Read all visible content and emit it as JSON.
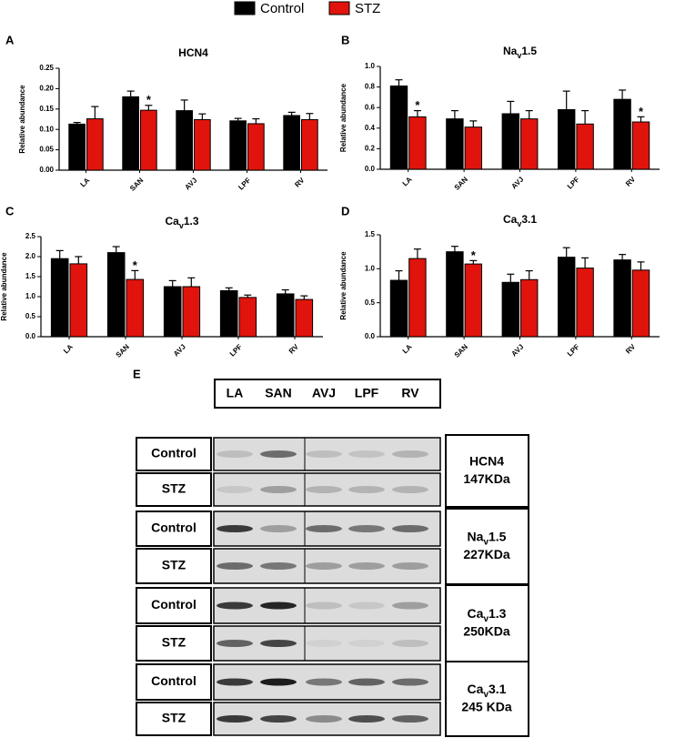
{
  "legend": [
    {
      "name": "Control",
      "color": "#000000"
    },
    {
      "name": "STZ",
      "color": "#e0140c"
    }
  ],
  "chart_data": [
    {
      "type": "bar",
      "panel": "A",
      "title": [
        "HCN4"
      ],
      "y_label": "Relative abundance",
      "categories": [
        "LA",
        "SAN",
        "AVJ",
        "LPF",
        "RV"
      ],
      "series": [
        {
          "values": [
            0.113,
            0.18,
            0.146,
            0.121,
            0.134
          ],
          "errors": [
            0.004,
            0.014,
            0.026,
            0.006,
            0.008
          ],
          "markers": [
            null,
            null,
            null,
            null,
            null
          ]
        },
        {
          "values": [
            0.126,
            0.147,
            0.124,
            0.114,
            0.124
          ],
          "errors": [
            0.03,
            0.012,
            0.014,
            0.012,
            0.015
          ],
          "markers": [
            null,
            "*",
            null,
            null,
            null
          ]
        }
      ],
      "ylim": [
        0,
        0.25
      ],
      "yticks": [
        {
          "value": 0,
          "label": "0.00"
        },
        {
          "value": 0.05,
          "label": "0.05"
        },
        {
          "value": 0.1,
          "label": "0.10"
        },
        {
          "value": 0.15,
          "label": "0.15"
        },
        {
          "value": 0.2,
          "label": "0.20"
        },
        {
          "value": 0.25,
          "label": "0.25"
        }
      ]
    },
    {
      "type": "bar",
      "panel": "B",
      "title": [
        "Na",
        "v",
        "1.5"
      ],
      "y_label": "Relative abundance",
      "categories": [
        "LA",
        "SAN",
        "AVJ",
        "LPF",
        "RV"
      ],
      "series": [
        {
          "values": [
            0.81,
            0.49,
            0.54,
            0.58,
            0.68
          ],
          "errors": [
            0.06,
            0.08,
            0.12,
            0.18,
            0.09
          ],
          "markers": [
            null,
            null,
            null,
            null,
            null
          ]
        },
        {
          "values": [
            0.51,
            0.41,
            0.49,
            0.44,
            0.46
          ],
          "errors": [
            0.06,
            0.06,
            0.08,
            0.13,
            0.05
          ],
          "markers": [
            "*",
            null,
            null,
            null,
            "*"
          ]
        }
      ],
      "ylim": [
        0,
        1
      ],
      "yticks": [
        {
          "value": 0,
          "label": "0.0"
        },
        0.2,
        0.4,
        0.6,
        0.8,
        {
          "value": 1,
          "label": "1.0"
        }
      ]
    },
    {
      "type": "bar",
      "panel": "C",
      "title": [
        "Ca",
        "v",
        "1.3"
      ],
      "y_label": "Relative abundance",
      "categories": [
        "LA",
        "SAN",
        "AVJ",
        "LPF",
        "RV"
      ],
      "series": [
        {
          "values": [
            1.95,
            2.1,
            1.25,
            1.15,
            1.07
          ],
          "errors": [
            0.2,
            0.15,
            0.15,
            0.07,
            0.1
          ],
          "markers": [
            null,
            null,
            null,
            null,
            null
          ]
        },
        {
          "values": [
            1.82,
            1.43,
            1.25,
            0.98,
            0.93
          ],
          "errors": [
            0.18,
            0.22,
            0.22,
            0.06,
            0.09
          ],
          "markers": [
            null,
            "*",
            null,
            null,
            null
          ]
        }
      ],
      "ylim": [
        0,
        2.5
      ],
      "yticks": [
        {
          "value": 0,
          "label": "0.0"
        },
        0.5,
        {
          "value": 1,
          "label": "1.0"
        },
        1.5,
        {
          "value": 2,
          "label": "2.0"
        },
        2.5
      ]
    },
    {
      "type": "bar",
      "panel": "D",
      "title": [
        "Ca",
        "v",
        "3.1"
      ],
      "y_label": "Relative abundance",
      "categories": [
        "LA",
        "SAN",
        "AVJ",
        "LPF",
        "RV"
      ],
      "series": [
        {
          "values": [
            0.83,
            1.25,
            0.8,
            1.17,
            1.13
          ],
          "errors": [
            0.14,
            0.08,
            0.12,
            0.14,
            0.08
          ],
          "markers": [
            null,
            null,
            null,
            null,
            null
          ]
        },
        {
          "values": [
            1.15,
            1.07,
            0.84,
            1.01,
            0.98
          ],
          "errors": [
            0.14,
            0.05,
            0.13,
            0.15,
            0.12
          ],
          "markers": [
            null,
            "*",
            null,
            null,
            null
          ]
        }
      ],
      "ylim": [
        0,
        1.5
      ],
      "yticks": [
        {
          "value": 0,
          "label": "0.0"
        },
        0.5,
        {
          "value": 1,
          "label": "1.0"
        },
        1.5
      ]
    }
  ],
  "blot": {
    "panel": "E",
    "lanes": [
      "LA",
      "SAN",
      "AVJ",
      "LPF",
      "RV"
    ],
    "rows": [
      "Control",
      "STZ",
      "Control",
      "STZ",
      "Control",
      "STZ",
      "Control",
      "STZ"
    ],
    "proteins": [
      {
        "name": [
          "HCN4"
        ],
        "size": "147KDa"
      },
      {
        "name": [
          "Na",
          "v",
          "1.5"
        ],
        "size": "227KDa"
      },
      {
        "name": [
          "Ca",
          "v",
          "1.3"
        ],
        "size": "250KDa"
      },
      {
        "name": [
          "Ca",
          "v",
          "3.1"
        ],
        "size": "245 KDa"
      }
    ]
  }
}
